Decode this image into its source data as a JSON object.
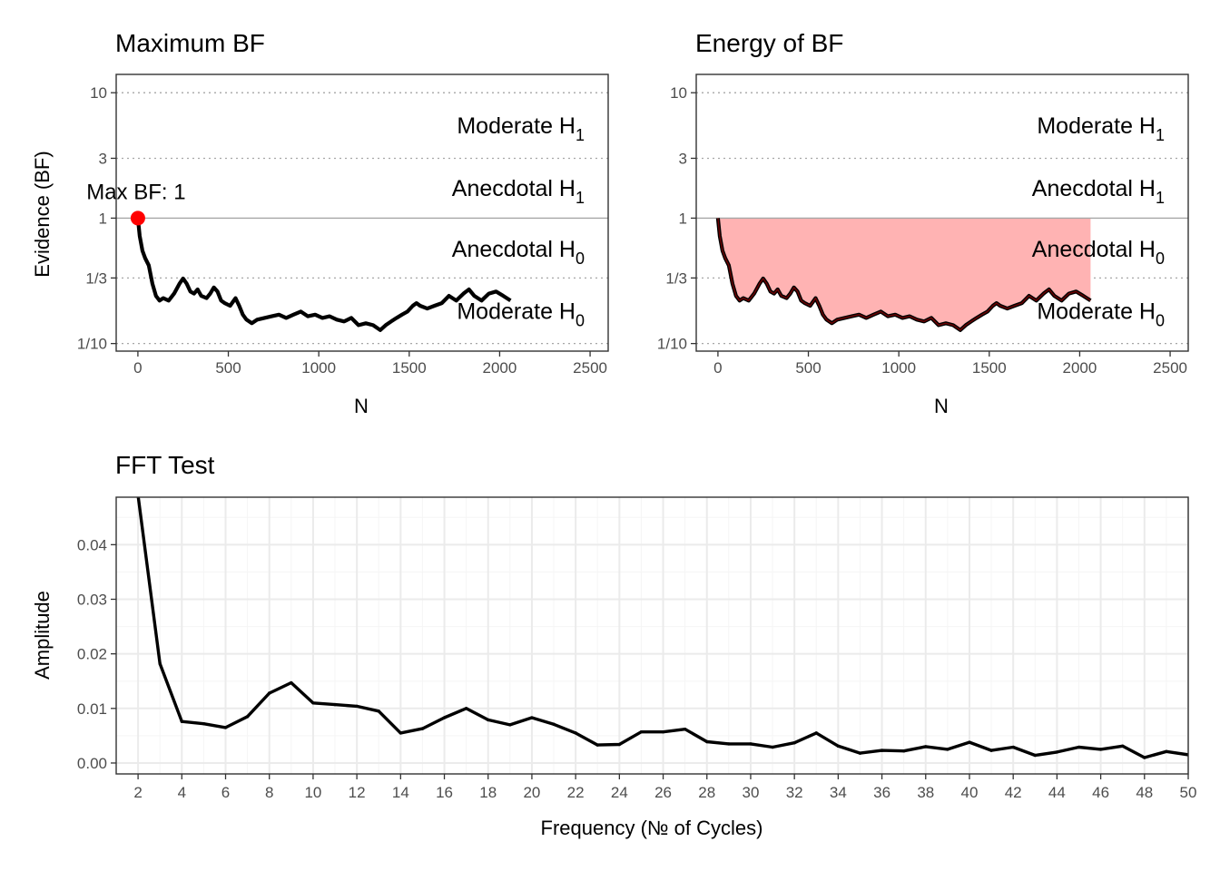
{
  "colors": {
    "line": "#000000",
    "point": "#ff0000",
    "fill": "#ffb3b3",
    "ref_line": "#a6a6a6",
    "dotted_ref": "#a6a6a6",
    "grid_major": "#ebebeb",
    "grid_minor": "#f5f5f5",
    "panel_border": "#333333"
  },
  "chart_data": [
    {
      "type": "line",
      "title": "Maximum BF",
      "xlabel": "N",
      "ylabel": "Evidence (BF)",
      "log_y": true,
      "xlim": [
        -120,
        2600
      ],
      "ylim": [
        0.087,
        14
      ],
      "x_ticks": [
        "0",
        "500",
        "1000",
        "1500",
        "2000",
        "2500"
      ],
      "y_ticks": [
        "10",
        "3",
        "1",
        "1/3",
        "1/10"
      ],
      "grid": false,
      "reference_lines": [
        10,
        3,
        0.3333,
        0.1
      ],
      "baseline": 1,
      "region_labels": [
        {
          "text": "Moderate H",
          "sub": "1",
          "y": 5.5
        },
        {
          "text": "Anecdotal H",
          "sub": "1",
          "y": 1.75
        },
        {
          "text": "Anecdotal H",
          "sub": "0",
          "y": 0.57
        },
        {
          "text": "Moderate H",
          "sub": "0",
          "y": 0.183
        }
      ],
      "annotation": {
        "text": "Max BF: 1",
        "x": 0,
        "y": 1
      },
      "series_xy": [
        [
          0,
          1.0
        ],
        [
          10,
          0.72
        ],
        [
          25,
          0.55
        ],
        [
          40,
          0.48
        ],
        [
          60,
          0.42
        ],
        [
          80,
          0.3
        ],
        [
          100,
          0.24
        ],
        [
          120,
          0.22
        ],
        [
          140,
          0.23
        ],
        [
          170,
          0.22
        ],
        [
          200,
          0.25
        ],
        [
          230,
          0.3
        ],
        [
          250,
          0.33
        ],
        [
          270,
          0.3
        ],
        [
          290,
          0.26
        ],
        [
          310,
          0.25
        ],
        [
          330,
          0.27
        ],
        [
          350,
          0.24
        ],
        [
          380,
          0.23
        ],
        [
          400,
          0.25
        ],
        [
          420,
          0.28
        ],
        [
          440,
          0.26
        ],
        [
          460,
          0.22
        ],
        [
          480,
          0.21
        ],
        [
          510,
          0.2
        ],
        [
          540,
          0.23
        ],
        [
          560,
          0.2
        ],
        [
          580,
          0.17
        ],
        [
          600,
          0.155
        ],
        [
          630,
          0.145
        ],
        [
          660,
          0.155
        ],
        [
          700,
          0.16
        ],
        [
          740,
          0.165
        ],
        [
          780,
          0.17
        ],
        [
          820,
          0.16
        ],
        [
          860,
          0.17
        ],
        [
          900,
          0.18
        ],
        [
          940,
          0.165
        ],
        [
          980,
          0.17
        ],
        [
          1020,
          0.16
        ],
        [
          1060,
          0.165
        ],
        [
          1100,
          0.155
        ],
        [
          1140,
          0.15
        ],
        [
          1180,
          0.16
        ],
        [
          1220,
          0.14
        ],
        [
          1260,
          0.145
        ],
        [
          1300,
          0.14
        ],
        [
          1340,
          0.128
        ],
        [
          1370,
          0.14
        ],
        [
          1400,
          0.15
        ],
        [
          1430,
          0.16
        ],
        [
          1460,
          0.17
        ],
        [
          1490,
          0.18
        ],
        [
          1520,
          0.2
        ],
        [
          1540,
          0.21
        ],
        [
          1560,
          0.2
        ],
        [
          1600,
          0.19
        ],
        [
          1640,
          0.2
        ],
        [
          1680,
          0.21
        ],
        [
          1720,
          0.24
        ],
        [
          1760,
          0.22
        ],
        [
          1800,
          0.25
        ],
        [
          1830,
          0.27
        ],
        [
          1860,
          0.24
        ],
        [
          1900,
          0.22
        ],
        [
          1940,
          0.25
        ],
        [
          1980,
          0.26
        ],
        [
          2020,
          0.24
        ],
        [
          2060,
          0.22
        ]
      ]
    },
    {
      "type": "area",
      "title": "Energy of BF",
      "xlabel": "N",
      "ylabel": "",
      "log_y": true,
      "xlim": [
        -120,
        2600
      ],
      "ylim": [
        0.087,
        14
      ],
      "x_ticks": [
        "0",
        "500",
        "1000",
        "1500",
        "2000",
        "2500"
      ],
      "y_ticks": [
        "10",
        "3",
        "1",
        "1/3",
        "1/10"
      ],
      "grid": false,
      "reference_lines": [
        10,
        3,
        0.3333,
        0.1
      ],
      "baseline": 1,
      "fill_between": "series and 1",
      "region_labels": [
        {
          "text": "Moderate H",
          "sub": "1",
          "y": 5.5
        },
        {
          "text": "Anecdotal H",
          "sub": "1",
          "y": 1.75
        },
        {
          "text": "Anecdotal H",
          "sub": "0",
          "y": 0.57
        },
        {
          "text": "Moderate H",
          "sub": "0",
          "y": 0.183
        }
      ],
      "same_series_as": 0
    },
    {
      "type": "line",
      "title": "FFT Test",
      "xlabel": "Frequency (№ of Cycles)",
      "ylabel": "Amplitude",
      "xlim": [
        1,
        50
      ],
      "ylim": [
        -0.002,
        0.0487
      ],
      "x_ticks": [
        "2",
        "4",
        "6",
        "8",
        "10",
        "12",
        "14",
        "16",
        "18",
        "20",
        "22",
        "24",
        "26",
        "28",
        "30",
        "32",
        "34",
        "36",
        "38",
        "40",
        "42",
        "44",
        "46",
        "48",
        "50"
      ],
      "y_ticks": [
        "0.00",
        "0.01",
        "0.02",
        "0.03",
        "0.04"
      ],
      "grid": true,
      "x": [
        2,
        3,
        4,
        5,
        6,
        7,
        8,
        9,
        10,
        11,
        12,
        13,
        14,
        15,
        16,
        17,
        18,
        19,
        20,
        21,
        22,
        23,
        24,
        25,
        26,
        27,
        28,
        29,
        30,
        31,
        32,
        33,
        34,
        35,
        36,
        37,
        38,
        39,
        40,
        41,
        42,
        43,
        44,
        45,
        46,
        47,
        48,
        49,
        50
      ],
      "values": [
        0.049,
        0.0182,
        0.0076,
        0.0072,
        0.0065,
        0.0085,
        0.0128,
        0.0147,
        0.011,
        0.0107,
        0.0104,
        0.0095,
        0.0055,
        0.0063,
        0.0083,
        0.01,
        0.0079,
        0.007,
        0.0083,
        0.0071,
        0.0055,
        0.0033,
        0.0034,
        0.0057,
        0.0057,
        0.0062,
        0.0039,
        0.0035,
        0.0035,
        0.0029,
        0.0037,
        0.0055,
        0.0031,
        0.0018,
        0.0023,
        0.0022,
        0.003,
        0.0025,
        0.0038,
        0.0023,
        0.0029,
        0.0014,
        0.002,
        0.0029,
        0.0025,
        0.0031,
        0.001,
        0.0021,
        0.0015
      ]
    }
  ]
}
